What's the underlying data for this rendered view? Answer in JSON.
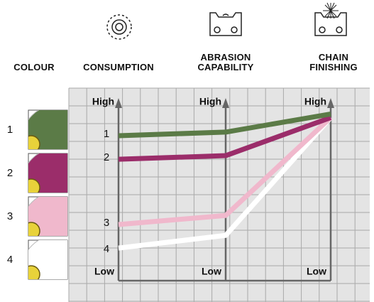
{
  "chart_data": {
    "type": "line",
    "legend_title": "COLOUR",
    "categories": [
      "CONSUMPTION",
      "ABRASION CAPABILITY",
      "CHAIN FINISHING"
    ],
    "series": [
      {
        "name": "1",
        "color": "#5b7b47",
        "values": [
          8.0,
          8.2,
          9.2
        ]
      },
      {
        "name": "2",
        "color": "#9b2d6a",
        "values": [
          6.7,
          6.9,
          9.0
        ]
      },
      {
        "name": "3",
        "color": "#f0b8cc",
        "values": [
          3.1,
          3.6,
          9.0
        ]
      },
      {
        "name": "4",
        "color": "#ffffff",
        "values": [
          1.8,
          2.5,
          9.0
        ]
      }
    ],
    "ylim": [
      0,
      10
    ],
    "yticks": [
      {
        "value": 0,
        "label": "Low"
      },
      {
        "value": 10,
        "label": "High"
      }
    ],
    "grid": true
  }
}
